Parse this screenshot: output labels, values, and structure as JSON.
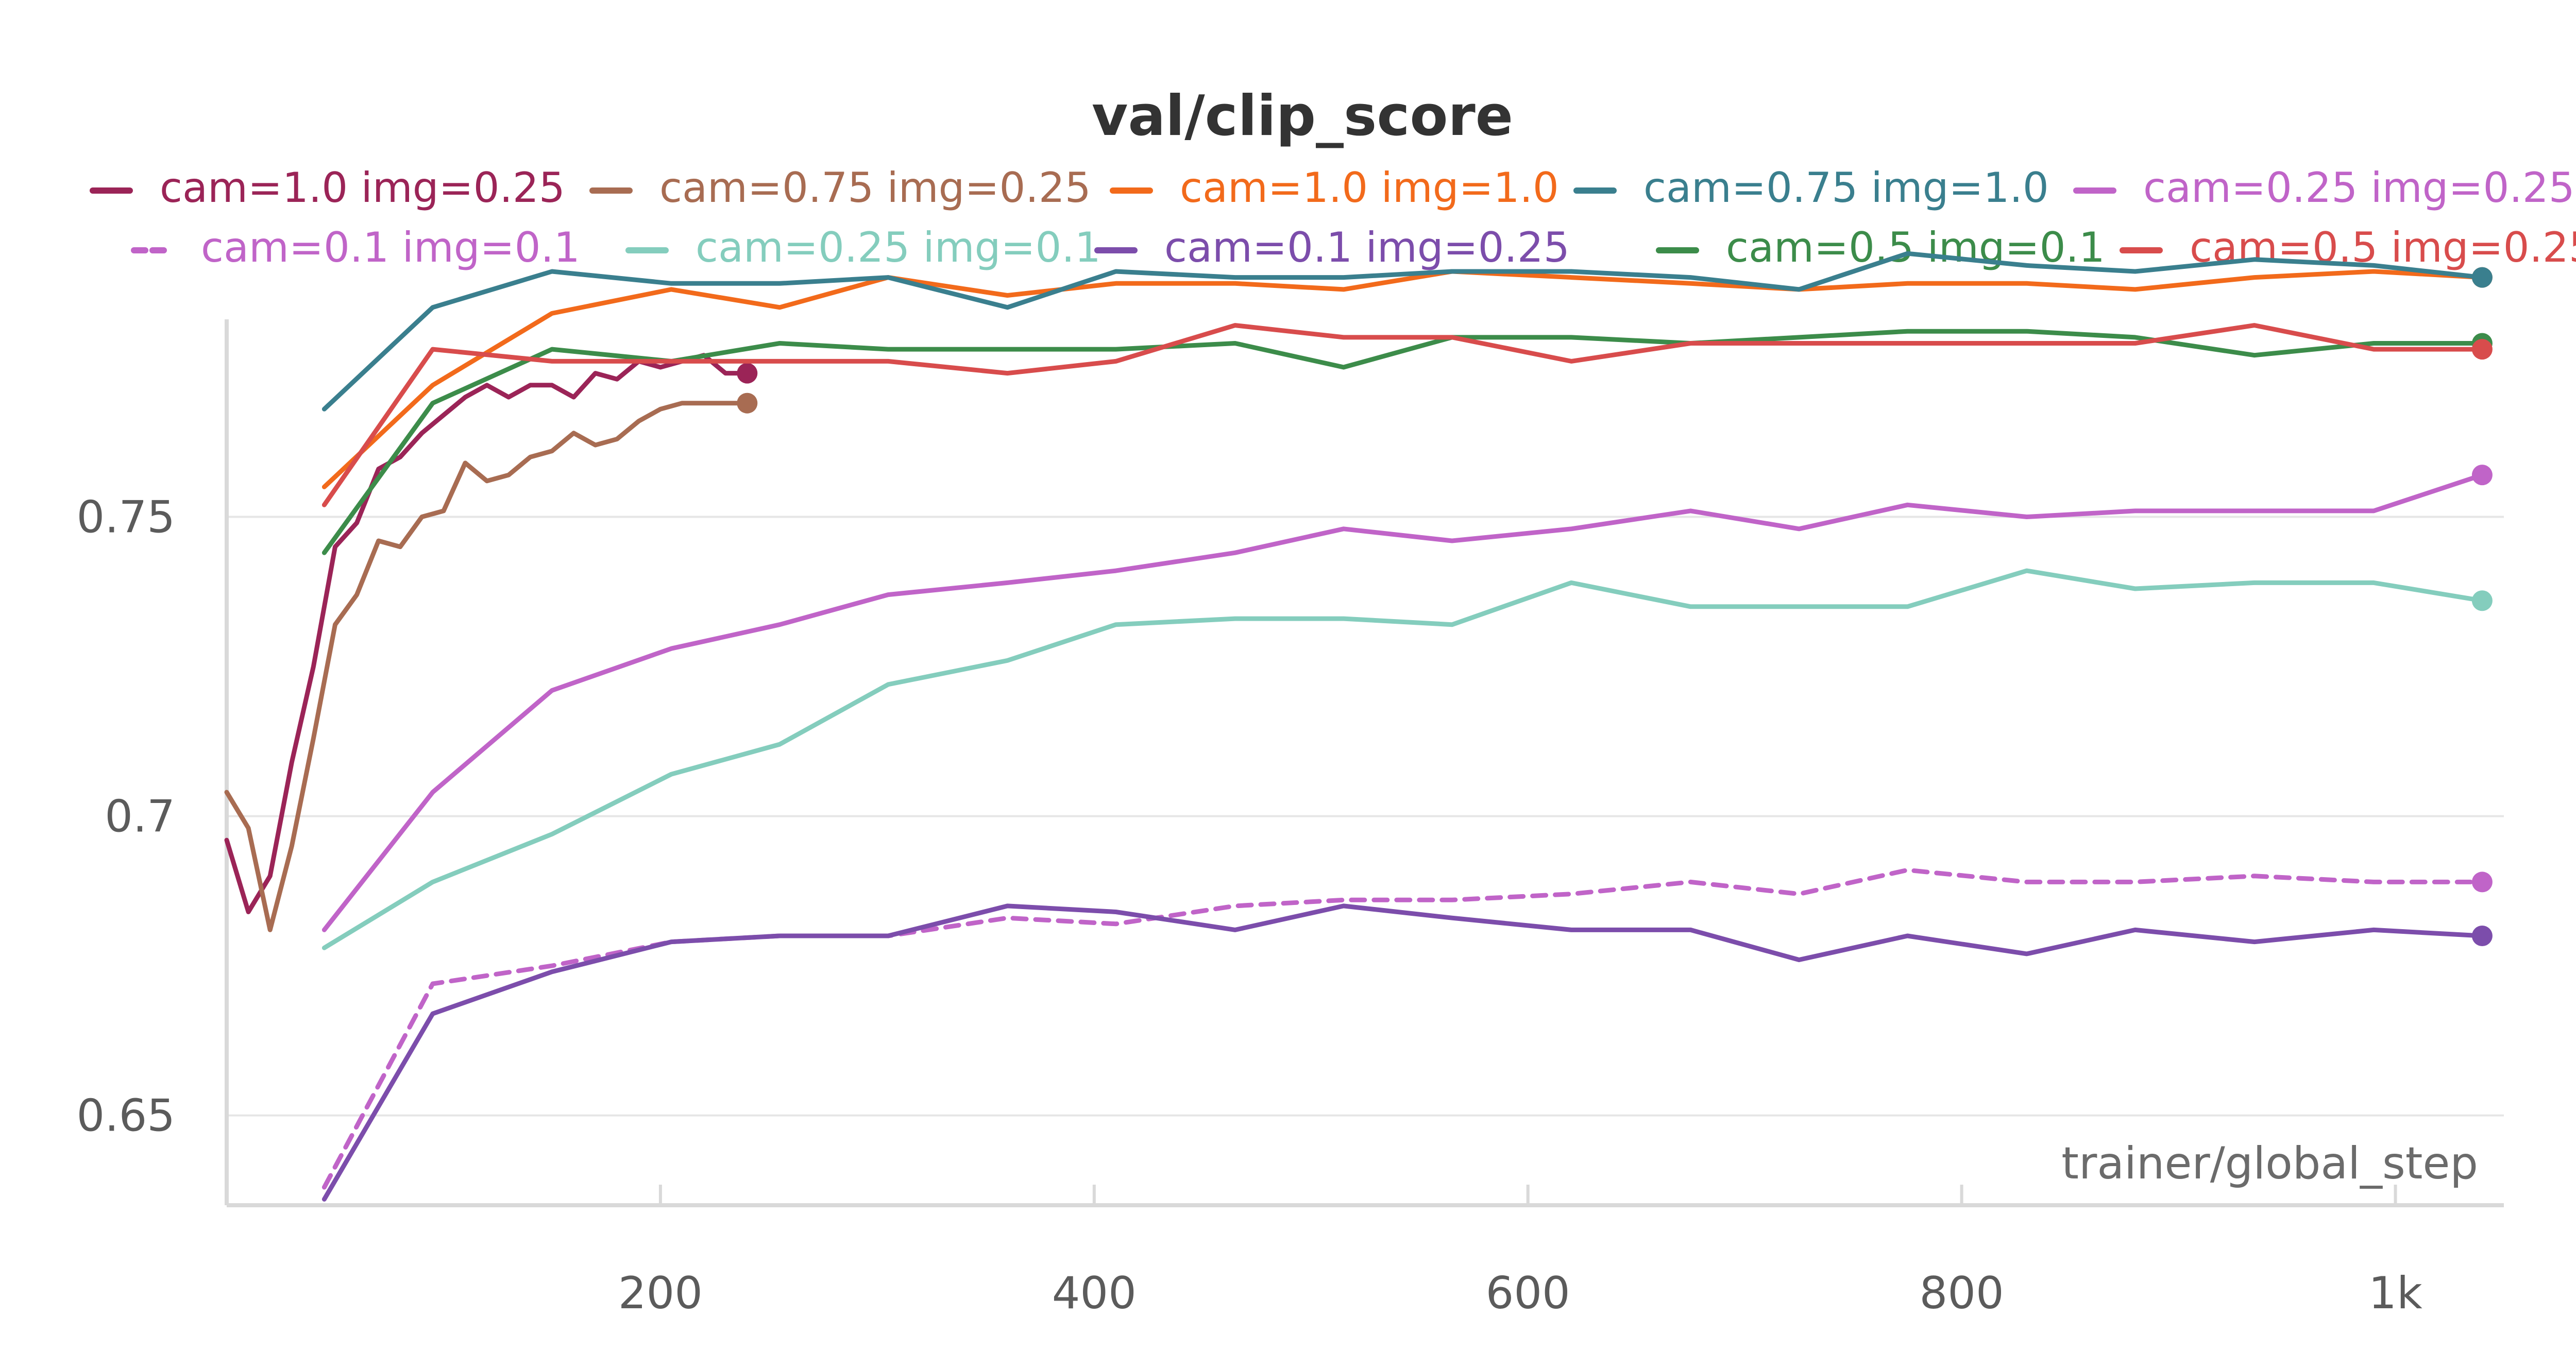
{
  "chart_data": {
    "type": "line",
    "title": "val/clip_score",
    "xlabel": "trainer/global_step",
    "ylabel": "",
    "xlim": [
      0,
      1050
    ],
    "ylim": [
      0.635,
      0.783
    ],
    "x_ticks": [
      {
        "value": 200,
        "label": "200"
      },
      {
        "value": 400,
        "label": "400"
      },
      {
        "value": 600,
        "label": "600"
      },
      {
        "value": 800,
        "label": "800"
      },
      {
        "value": 1000,
        "label": "1k"
      }
    ],
    "y_ticks": [
      {
        "value": 0.65,
        "label": "0.65"
      },
      {
        "value": 0.7,
        "label": "0.7"
      },
      {
        "value": 0.75,
        "label": "0.75"
      }
    ],
    "grid": true,
    "legend_position": "top",
    "series": [
      {
        "name": "cam=1.0 img=0.25",
        "color": "#9b2457",
        "dash": false,
        "x": [
          0,
          10,
          20,
          30,
          40,
          50,
          60,
          70,
          80,
          90,
          100,
          110,
          120,
          130,
          140,
          150,
          160,
          170,
          180,
          190,
          200,
          210,
          220,
          230,
          240
        ],
        "y": [
          0.696,
          0.684,
          0.69,
          0.709,
          0.725,
          0.745,
          0.749,
          0.758,
          0.76,
          0.764,
          0.767,
          0.77,
          0.772,
          0.77,
          0.772,
          0.772,
          0.77,
          0.774,
          0.773,
          0.776,
          0.775,
          0.776,
          0.777,
          0.774,
          0.774
        ]
      },
      {
        "name": "cam=0.75 img=0.25",
        "color": "#a86c52",
        "dash": false,
        "x": [
          0,
          10,
          20,
          30,
          40,
          50,
          60,
          70,
          80,
          90,
          100,
          110,
          120,
          130,
          140,
          150,
          160,
          170,
          180,
          190,
          200,
          210,
          220,
          230,
          240
        ],
        "y": [
          0.704,
          0.698,
          0.681,
          0.695,
          0.713,
          0.732,
          0.737,
          0.746,
          0.745,
          0.75,
          0.751,
          0.759,
          0.756,
          0.757,
          0.76,
          0.761,
          0.764,
          0.762,
          0.763,
          0.766,
          0.768,
          0.769,
          0.769,
          0.769,
          0.769
        ]
      },
      {
        "name": "cam=1.0 img=1.0",
        "color": "#f26a1b",
        "dash": false,
        "x": [
          45,
          95,
          150,
          205,
          255,
          305,
          360,
          410,
          465,
          515,
          565,
          620,
          675,
          725,
          775,
          830,
          880,
          935,
          990,
          1040
        ],
        "y": [
          0.755,
          0.772,
          0.784,
          0.788,
          0.785,
          0.79,
          0.787,
          0.789,
          0.789,
          0.788,
          0.791,
          0.79,
          0.789,
          0.788,
          0.789,
          0.789,
          0.788,
          0.79,
          0.791,
          0.79
        ]
      },
      {
        "name": "cam=0.75 img=1.0",
        "color": "#3a7f8e",
        "dash": false,
        "x": [
          45,
          95,
          150,
          205,
          255,
          305,
          360,
          410,
          465,
          515,
          565,
          620,
          675,
          725,
          775,
          830,
          880,
          935,
          990,
          1040
        ],
        "y": [
          0.768,
          0.785,
          0.791,
          0.789,
          0.789,
          0.79,
          0.785,
          0.791,
          0.79,
          0.79,
          0.791,
          0.791,
          0.79,
          0.788,
          0.794,
          0.792,
          0.791,
          0.793,
          0.792,
          0.79
        ]
      },
      {
        "name": "cam=0.25 img=0.25",
        "color": "#c064c8",
        "dash": false,
        "x": [
          45,
          95,
          150,
          205,
          255,
          305,
          360,
          410,
          465,
          515,
          565,
          620,
          675,
          725,
          775,
          830,
          880,
          935,
          990,
          1040
        ],
        "y": [
          0.681,
          0.704,
          0.721,
          0.728,
          0.732,
          0.737,
          0.739,
          0.741,
          0.744,
          0.748,
          0.746,
          0.748,
          0.751,
          0.748,
          0.752,
          0.75,
          0.751,
          0.751,
          0.751,
          0.757
        ]
      },
      {
        "name": "cam=0.1 img=0.1",
        "color": "#c064c8",
        "dash": true,
        "x": [
          45,
          95,
          150,
          205,
          255,
          305,
          360,
          410,
          465,
          515,
          565,
          620,
          675,
          725,
          775,
          830,
          880,
          935,
          990,
          1040
        ],
        "y": [
          0.638,
          0.672,
          0.675,
          0.679,
          0.68,
          0.68,
          0.683,
          0.682,
          0.685,
          0.686,
          0.686,
          0.687,
          0.689,
          0.687,
          0.691,
          0.689,
          0.689,
          0.69,
          0.689,
          0.689
        ]
      },
      {
        "name": "cam=0.25 img=0.1",
        "color": "#84cdbd",
        "dash": false,
        "x": [
          45,
          95,
          150,
          205,
          255,
          305,
          360,
          410,
          465,
          515,
          565,
          620,
          675,
          725,
          775,
          830,
          880,
          935,
          990,
          1040
        ],
        "y": [
          0.678,
          0.689,
          0.697,
          0.707,
          0.712,
          0.722,
          0.726,
          0.732,
          0.733,
          0.733,
          0.732,
          0.739,
          0.735,
          0.735,
          0.735,
          0.741,
          0.738,
          0.739,
          0.739,
          0.736
        ]
      },
      {
        "name": "cam=0.1 img=0.25",
        "color": "#7c4dab",
        "dash": false,
        "x": [
          45,
          95,
          150,
          205,
          255,
          305,
          360,
          410,
          465,
          515,
          565,
          620,
          675,
          725,
          775,
          830,
          880,
          935,
          990,
          1040
        ],
        "y": [
          0.636,
          0.667,
          0.674,
          0.679,
          0.68,
          0.68,
          0.685,
          0.684,
          0.681,
          0.685,
          0.683,
          0.681,
          0.681,
          0.676,
          0.68,
          0.677,
          0.681,
          0.679,
          0.681,
          0.68
        ]
      },
      {
        "name": "cam=0.5 img=0.1",
        "color": "#3c8c4a",
        "dash": false,
        "x": [
          45,
          95,
          150,
          205,
          255,
          305,
          360,
          410,
          465,
          515,
          565,
          620,
          675,
          725,
          775,
          830,
          880,
          935,
          990,
          1040
        ],
        "y": [
          0.744,
          0.769,
          0.778,
          0.776,
          0.779,
          0.778,
          0.778,
          0.778,
          0.779,
          0.775,
          0.78,
          0.78,
          0.779,
          0.78,
          0.781,
          0.781,
          0.78,
          0.777,
          0.779,
          0.779
        ]
      },
      {
        "name": "cam=0.5 img=0.25",
        "color": "#d84c4c",
        "dash": false,
        "x": [
          45,
          95,
          150,
          205,
          255,
          305,
          360,
          410,
          465,
          515,
          565,
          620,
          675,
          725,
          775,
          830,
          880,
          935,
          990,
          1040
        ],
        "y": [
          0.752,
          0.778,
          0.776,
          0.776,
          0.776,
          0.776,
          0.774,
          0.776,
          0.782,
          0.78,
          0.78,
          0.776,
          0.779,
          0.779,
          0.779,
          0.779,
          0.779,
          0.782,
          0.778,
          0.778
        ]
      }
    ]
  }
}
